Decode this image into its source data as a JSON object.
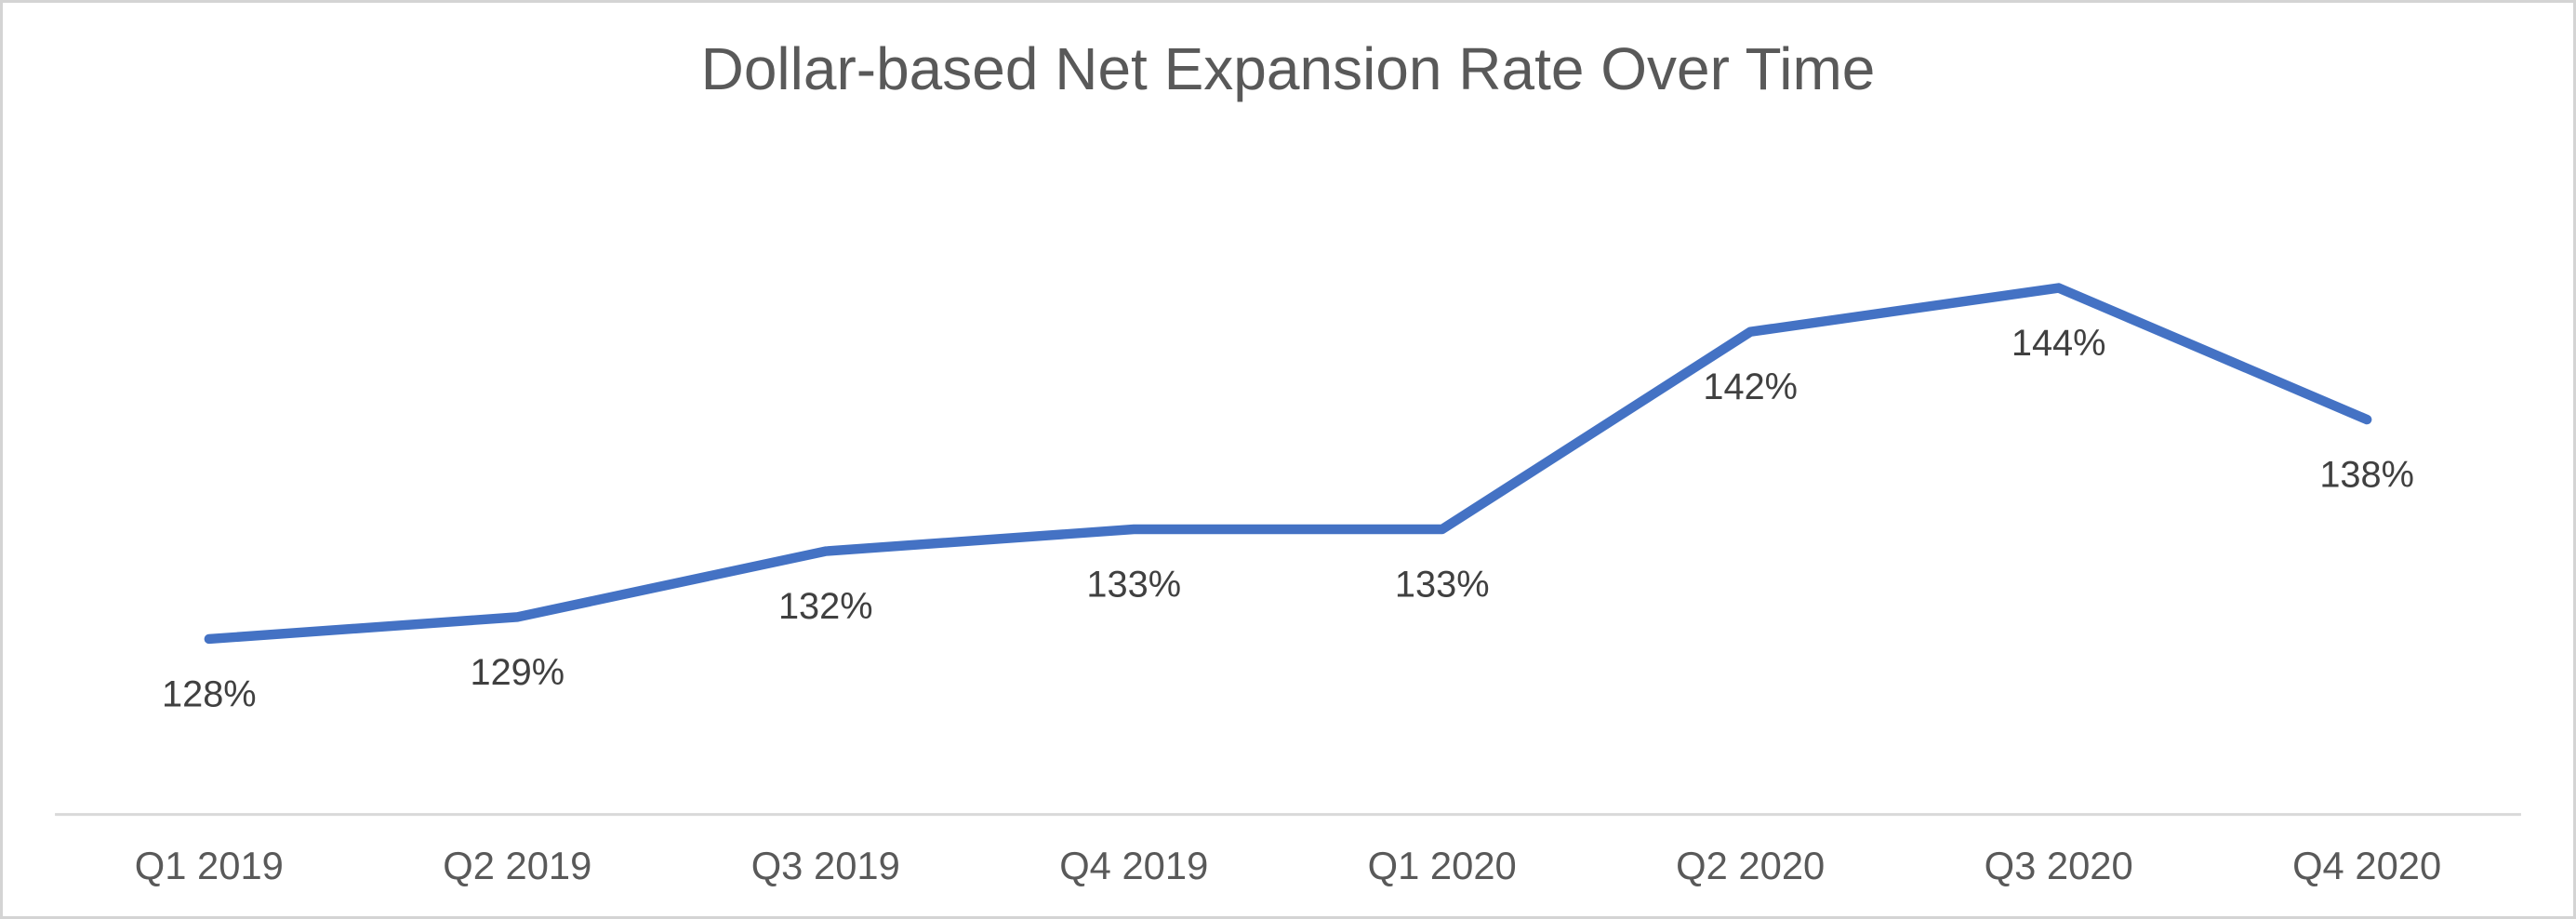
{
  "window": {
    "background": "#FFFFFF",
    "border_color": "#D4D4D4"
  },
  "chart_data": {
    "type": "line",
    "title": "Dollar-based Net Expansion Rate Over Time",
    "categories": [
      "Q1 2019",
      "Q2 2019",
      "Q3 2019",
      "Q4 2019",
      "Q1 2020",
      "Q2 2020",
      "Q3 2020",
      "Q4 2020"
    ],
    "values": [
      128,
      129,
      132,
      133,
      133,
      142,
      144,
      138
    ],
    "data_labels": [
      "128%",
      "129%",
      "132%",
      "133%",
      "133%",
      "142%",
      "144%",
      "138%"
    ],
    "xlabel": "",
    "ylabel": "",
    "ylim": [
      120,
      150
    ],
    "grid": false,
    "legend": "none",
    "data_label_position": "below",
    "colors": {
      "series_line": "#4472C4",
      "axis_line": "#D9D9D9",
      "data_label": "#404040",
      "tick_label": "#595959",
      "title": "#595959"
    }
  }
}
